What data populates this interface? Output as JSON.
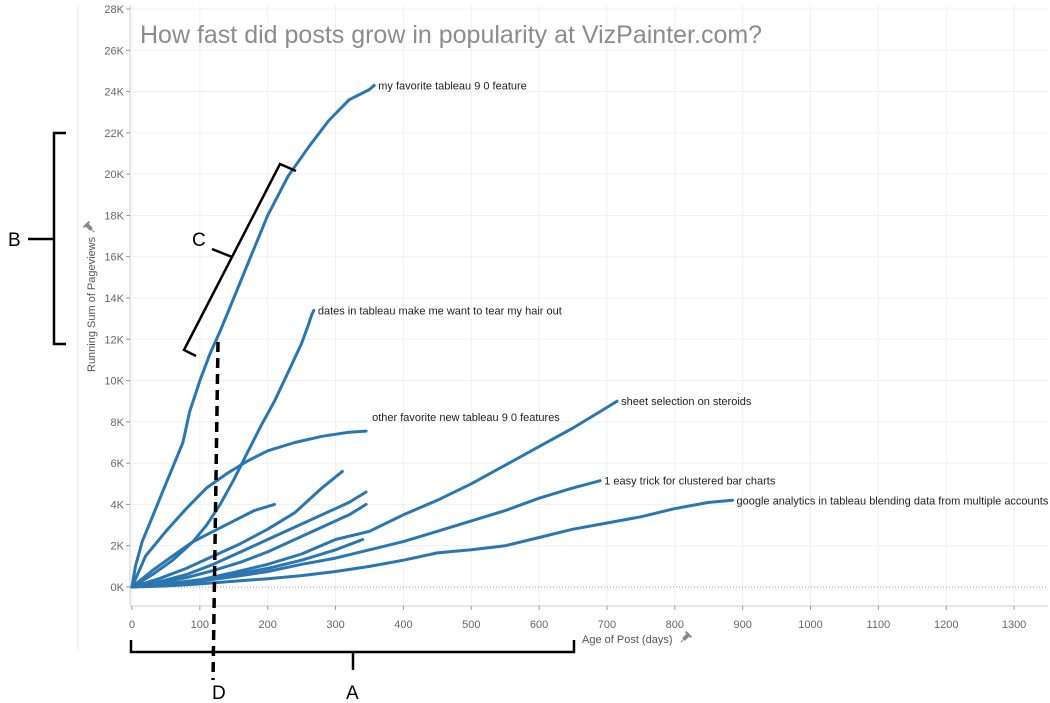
{
  "chart_data": {
    "type": "line",
    "title": "How fast did posts grow in popularity at VizPainter.com?",
    "xlabel": "Age of Post (days)",
    "ylabel": "Running Sum of Pageviews",
    "xlim": [
      0,
      1350
    ],
    "ylim": [
      0,
      28000
    ],
    "x_ticks": [
      0,
      100,
      200,
      300,
      400,
      500,
      600,
      700,
      800,
      900,
      1000,
      1100,
      1200,
      1300
    ],
    "y_ticks": [
      0,
      2000,
      4000,
      6000,
      8000,
      10000,
      12000,
      14000,
      16000,
      18000,
      20000,
      22000,
      24000,
      26000,
      28000
    ],
    "y_tick_labels": [
      "0K",
      "2K",
      "4K",
      "6K",
      "8K",
      "10K",
      "12K",
      "14K",
      "16K",
      "18K",
      "20K",
      "22K",
      "24K",
      "26K",
      "28K"
    ],
    "grid": true,
    "line_color": "#2a76b2",
    "series": [
      {
        "name": "my favorite tableau 9 0 feature",
        "x": [
          0,
          5,
          15,
          30,
          45,
          60,
          75,
          85,
          100,
          115,
          130,
          150,
          175,
          200,
          230,
          260,
          290,
          320,
          350,
          357
        ],
        "y": [
          0,
          1000,
          2200,
          3400,
          4600,
          5800,
          7000,
          8500,
          10000,
          11300,
          12400,
          14000,
          16000,
          18000,
          19900,
          21300,
          22600,
          23600,
          24100,
          24300
        ]
      },
      {
        "name": "dates in tableau make me want to tear my hair out",
        "x": [
          0,
          30,
          60,
          90,
          110,
          130,
          150,
          170,
          190,
          210,
          230,
          250,
          260,
          265,
          268
        ],
        "y": [
          0,
          600,
          1300,
          2200,
          3000,
          4000,
          5200,
          6500,
          7800,
          9000,
          10400,
          11800,
          12700,
          13200,
          13400
        ]
      },
      {
        "name": "other favorite new tableau 9 0 features",
        "x": [
          0,
          20,
          50,
          80,
          110,
          140,
          170,
          200,
          240,
          280,
          320,
          345
        ],
        "y": [
          0,
          1500,
          2700,
          3800,
          4800,
          5500,
          6100,
          6600,
          7000,
          7300,
          7500,
          7550
        ]
      },
      {
        "name": "sheet selection on steroids",
        "x": [
          0,
          50,
          100,
          150,
          200,
          250,
          300,
          350,
          400,
          450,
          500,
          550,
          600,
          650,
          700,
          715
        ],
        "y": [
          0,
          150,
          350,
          700,
          1100,
          1600,
          2300,
          2700,
          3500,
          4200,
          5000,
          5900,
          6800,
          7700,
          8700,
          9000
        ]
      },
      {
        "name": "1 easy trick for clustered bar charts",
        "x": [
          0,
          50,
          100,
          150,
          200,
          250,
          300,
          350,
          400,
          450,
          500,
          550,
          600,
          650,
          690
        ],
        "y": [
          0,
          120,
          280,
          500,
          750,
          1100,
          1400,
          1800,
          2200,
          2700,
          3200,
          3700,
          4300,
          4800,
          5150
        ]
      },
      {
        "name": "google analytics in tableau blending data from multiple accounts",
        "x": [
          0,
          50,
          100,
          150,
          200,
          250,
          300,
          350,
          400,
          450,
          500,
          550,
          600,
          650,
          700,
          750,
          800,
          850,
          885
        ],
        "y": [
          0,
          50,
          150,
          280,
          400,
          550,
          750,
          1000,
          1300,
          1650,
          1800,
          2000,
          2400,
          2800,
          3100,
          3400,
          3800,
          4100,
          4200
        ]
      },
      {
        "name": "",
        "x": [
          0,
          30,
          60,
          90,
          120,
          150,
          180,
          210
        ],
        "y": [
          0,
          800,
          1500,
          2200,
          2700,
          3200,
          3700,
          4000
        ]
      },
      {
        "name": "",
        "x": [
          0,
          40,
          80,
          120,
          160,
          200,
          240,
          280,
          310
        ],
        "y": [
          0,
          400,
          900,
          1500,
          2100,
          2800,
          3600,
          4800,
          5600
        ]
      },
      {
        "name": "",
        "x": [
          0,
          40,
          80,
          120,
          160,
          200,
          240,
          280,
          320,
          345
        ],
        "y": [
          0,
          250,
          600,
          1100,
          1700,
          2300,
          2900,
          3500,
          4100,
          4600
        ]
      },
      {
        "name": "",
        "x": [
          0,
          40,
          80,
          120,
          160,
          200,
          240,
          280,
          320,
          345
        ],
        "y": [
          0,
          200,
          450,
          800,
          1200,
          1700,
          2300,
          2900,
          3500,
          4000
        ]
      },
      {
        "name": "",
        "x": [
          0,
          50,
          100,
          150,
          200,
          250,
          300,
          340
        ],
        "y": [
          0,
          150,
          300,
          600,
          900,
          1300,
          1800,
          2300
        ]
      }
    ],
    "annotations": [
      {
        "label": "A",
        "target": "x-axis range"
      },
      {
        "label": "B",
        "target": "y-axis range"
      },
      {
        "label": "C",
        "target": "steep segment of top line"
      },
      {
        "label": "D",
        "target": "vertical reference at ~130 days"
      }
    ]
  }
}
